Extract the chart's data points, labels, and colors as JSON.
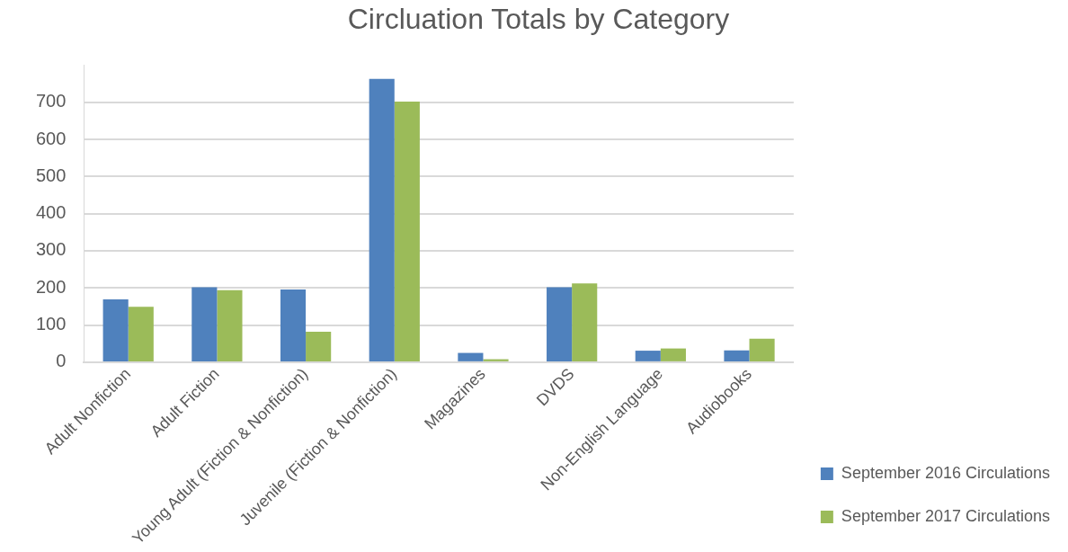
{
  "chart_data": {
    "type": "bar",
    "title": "Circluation Totals by Category",
    "categories": [
      "Adult Nonfiction",
      "Adult Fiction",
      "Young Adult (Fiction & Nonfiction)",
      "Juvenile (Fiction & Nonfiction)",
      "Magazines",
      "DVDS",
      "Non-English Language",
      "Audiobooks"
    ],
    "series": [
      {
        "name": "September 2016 Circulations",
        "color": "#4f81bd",
        "values": [
          169,
          202,
          196,
          763,
          25,
          202,
          31,
          32
        ]
      },
      {
        "name": "September 2017 Circulations",
        "color": "#9bbb59",
        "values": [
          149,
          194,
          82,
          702,
          8,
          212,
          37,
          63
        ]
      }
    ],
    "ylim": [
      0,
      800
    ],
    "yticks": [
      0,
      100,
      200,
      300,
      400,
      500,
      600,
      700
    ],
    "grid": "y",
    "legend": "right"
  }
}
